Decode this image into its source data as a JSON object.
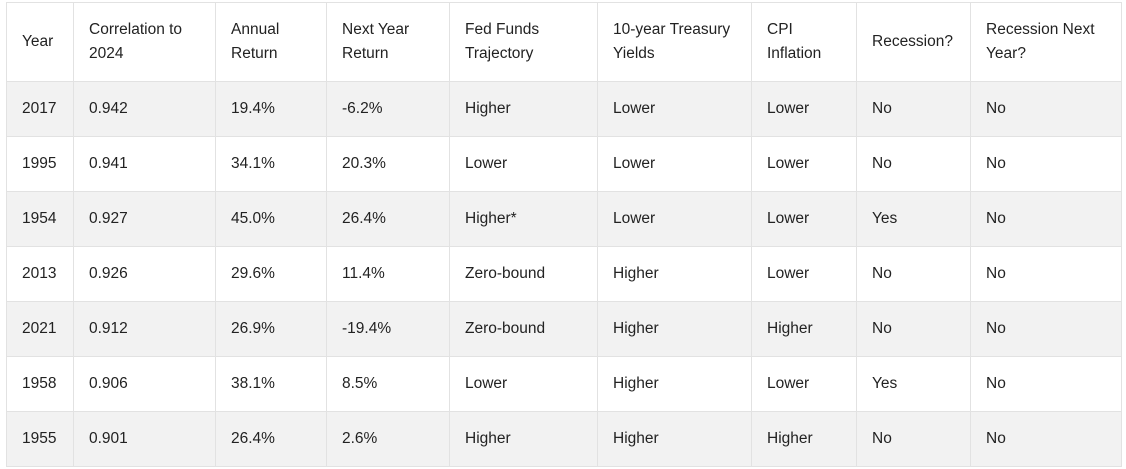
{
  "table": {
    "headers": [
      "Year",
      "Correlation to 2024",
      "Annual Return",
      "Next Year Return",
      "Fed Funds Trajectory",
      "10-year Treasury Yields",
      "CPI Inflation",
      "Recession?",
      "Recession Next Year?"
    ],
    "rows": [
      [
        "2017",
        "0.942",
        "19.4%",
        "-6.2%",
        "Higher",
        "Lower",
        "Lower",
        "No",
        "No"
      ],
      [
        "1995",
        "0.941",
        "34.1%",
        "20.3%",
        "Lower",
        "Lower",
        "Lower",
        "No",
        "No"
      ],
      [
        "1954",
        "0.927",
        "45.0%",
        "26.4%",
        "Higher*",
        "Lower",
        "Lower",
        "Yes",
        "No"
      ],
      [
        "2013",
        "0.926",
        "29.6%",
        "11.4%",
        "Zero-bound",
        "Higher",
        "Lower",
        "No",
        "No"
      ],
      [
        "2021",
        "0.912",
        "26.9%",
        "-19.4%",
        "Zero-bound",
        "Higher",
        "Higher",
        "No",
        "No"
      ],
      [
        "1958",
        "0.906",
        "38.1%",
        "8.5%",
        "Lower",
        "Higher",
        "Lower",
        "Yes",
        "No"
      ],
      [
        "1955",
        "0.901",
        "26.4%",
        "2.6%",
        "Higher",
        "Higher",
        "Higher",
        "No",
        "No"
      ]
    ]
  },
  "colors": {
    "shaded_row": "#f2f2f2",
    "border": "#e2e2e2",
    "text": "#222222"
  }
}
